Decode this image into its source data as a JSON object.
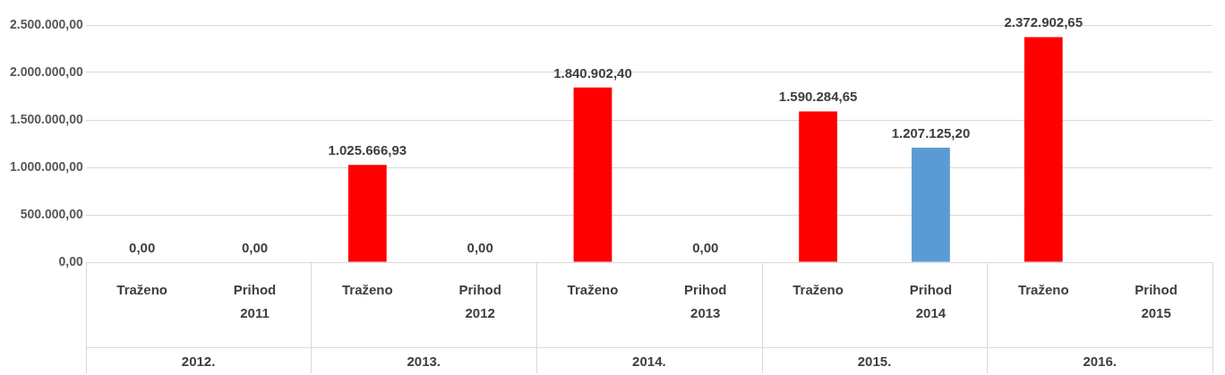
{
  "chart_data": {
    "type": "bar",
    "categories": [
      "Traženo",
      "Prihod 2011",
      "Traženo",
      "Prihod 2012",
      "Traženo",
      "Prihod 2013",
      "Traženo",
      "Prihod 2014",
      "Traženo",
      "Prihod 2015"
    ],
    "annotations": [
      "2012.",
      "2013.",
      "2014.",
      "2015.",
      "2016."
    ],
    "values": [
      0,
      0,
      1025666.93,
      0,
      1840902.4,
      0,
      1590284.65,
      1207125.2,
      2372902.65,
      null
    ],
    "colors": [
      "#ff0000",
      "#5b9bd5",
      "#ff0000",
      "#5b9bd5",
      "#ff0000",
      "#5b9bd5",
      "#ff0000",
      "#5b9bd5",
      "#ff0000",
      "#5b9bd5"
    ],
    "value_labels": [
      "0,00",
      "0,00",
      "1.025.666,93",
      "0,00",
      "1.840.902,40",
      "0,00",
      "1.590.284,65",
      "1.207.125,20",
      "2.372.902,65",
      null
    ],
    "ylim": [
      0,
      2500000
    ],
    "yticks": [
      {
        "value": 0,
        "label": "0,00"
      },
      {
        "value": 500000,
        "label": "500.000,00"
      },
      {
        "value": 1000000,
        "label": "1.000.000,00"
      },
      {
        "value": 1500000,
        "label": "1.500.000,00"
      },
      {
        "value": 2000000,
        "label": "2.000.000,00"
      },
      {
        "value": 2500000,
        "label": "2.500.000,00"
      }
    ],
    "grid": "y",
    "legend": false
  }
}
